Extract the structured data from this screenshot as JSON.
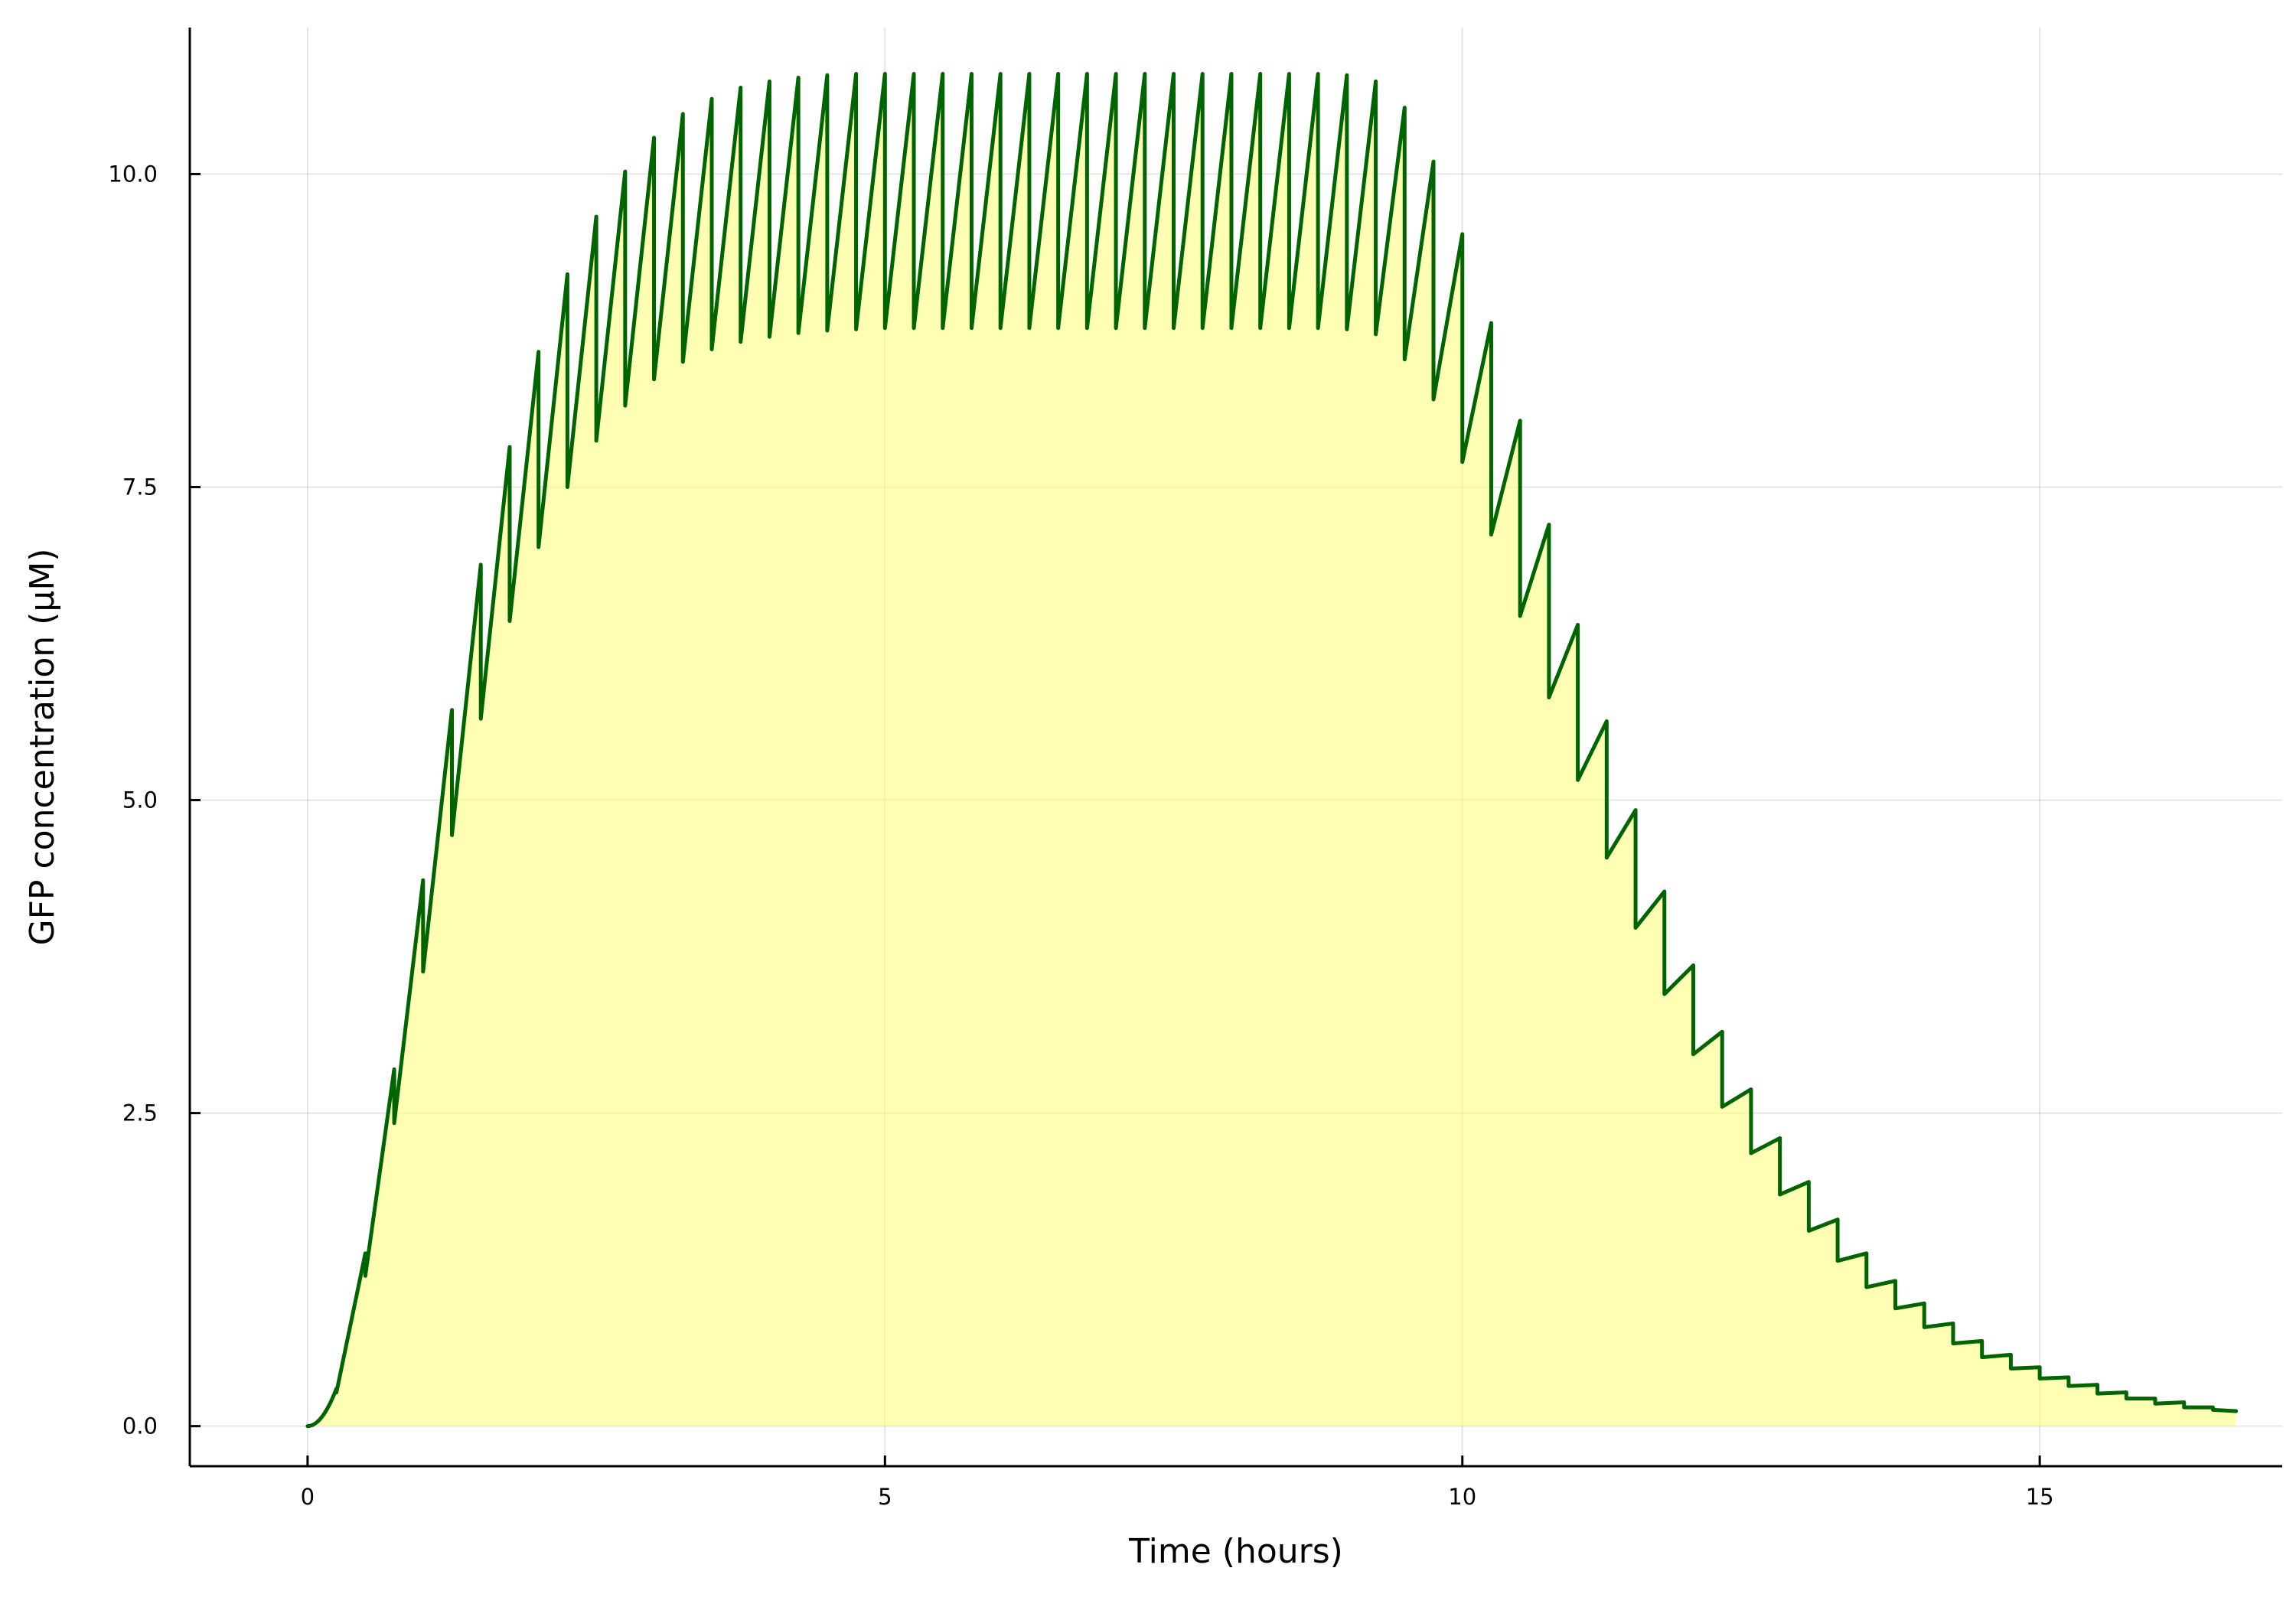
{
  "chart_data": {
    "type": "area",
    "title": "",
    "xlabel": "Time (hours)",
    "ylabel": "GFP concentration (μM)",
    "xlim": [
      -1.02,
      17.1
    ],
    "ylim": [
      -0.32,
      11.17
    ],
    "x_ticks": [
      0,
      5,
      10,
      15
    ],
    "x_tick_labels": [
      "0",
      "5",
      "10",
      "15"
    ],
    "y_ticks": [
      0,
      2.5,
      5,
      7.5,
      10
    ],
    "y_tick_labels": [
      "0.0",
      "2.5",
      "5.0",
      "7.5",
      "10.0"
    ],
    "grid": true,
    "legend": "none",
    "dose_interval_hours": 0.25,
    "series": [
      {
        "color": "#006400",
        "fill_color": "#ffff80",
        "fill_opacity": 0.6,
        "dose_times": [
          0,
          0.25,
          0.5,
          0.75,
          1.0,
          1.25,
          1.5,
          1.75,
          2.0,
          2.25,
          2.5,
          2.75,
          3.0,
          3.25,
          3.5,
          3.75,
          4.0,
          4.25,
          4.5,
          4.75,
          5.0,
          5.25,
          5.5,
          5.75,
          6.0,
          6.25,
          6.5,
          6.75,
          7.0,
          7.25,
          7.5,
          7.75,
          8.0,
          8.25,
          8.5,
          8.75,
          9.0,
          9.25,
          9.5,
          9.75,
          10.0,
          10.25,
          10.5,
          10.75,
          11.0,
          11.25,
          11.5,
          11.75,
          12.0,
          12.25,
          12.5,
          12.75,
          13.0,
          13.25,
          13.5,
          13.75,
          14.0,
          14.25,
          14.5,
          14.75,
          15.0,
          15.25,
          15.5,
          15.75,
          16.0,
          16.25,
          16.5
        ],
        "peaks": [
          0.3,
          1.38,
          2.85,
          4.36,
          5.72,
          6.88,
          7.82,
          8.58,
          9.2,
          9.66,
          10.02,
          10.29,
          10.48,
          10.6,
          10.69,
          10.74,
          10.77,
          10.79,
          10.8,
          10.8,
          10.8,
          10.8,
          10.8,
          10.8,
          10.8,
          10.8,
          10.8,
          10.8,
          10.8,
          10.8,
          10.8,
          10.8,
          10.8,
          10.8,
          10.8,
          10.79,
          10.74,
          10.53,
          10.1,
          9.52,
          8.81,
          8.03,
          7.2,
          6.4,
          5.63,
          4.92,
          4.27,
          3.68,
          3.15,
          2.69,
          2.3,
          1.95,
          1.65,
          1.38,
          1.16,
          0.98,
          0.82,
          0.68,
          0.57,
          0.47,
          0.39,
          0.33,
          0.27,
          0.22,
          0.19,
          0.15,
          0.13
        ],
        "troughs": [
          0.0,
          0.27,
          1.2,
          2.42,
          3.63,
          4.72,
          5.65,
          6.43,
          7.02,
          7.5,
          7.87,
          8.15,
          8.36,
          8.5,
          8.6,
          8.66,
          8.7,
          8.73,
          8.75,
          8.76,
          8.77,
          8.77,
          8.77,
          8.77,
          8.77,
          8.77,
          8.77,
          8.77,
          8.77,
          8.77,
          8.77,
          8.77,
          8.77,
          8.77,
          8.77,
          8.77,
          8.76,
          8.72,
          8.52,
          8.2,
          7.7,
          7.12,
          6.47,
          5.82,
          5.16,
          4.54,
          3.98,
          3.45,
          2.97,
          2.55,
          2.18,
          1.85,
          1.56,
          1.32,
          1.11,
          0.94,
          0.79,
          0.66,
          0.55,
          0.46,
          0.38,
          0.32,
          0.26,
          0.22,
          0.18,
          0.15,
          0.13
        ],
        "end_x": 16.7,
        "end_y": 0.12
      }
    ]
  }
}
